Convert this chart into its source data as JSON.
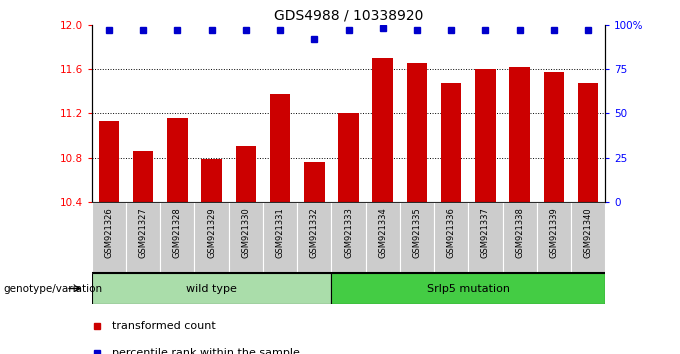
{
  "title": "GDS4988 / 10338920",
  "samples": [
    "GSM921326",
    "GSM921327",
    "GSM921328",
    "GSM921329",
    "GSM921330",
    "GSM921331",
    "GSM921332",
    "GSM921333",
    "GSM921334",
    "GSM921335",
    "GSM921336",
    "GSM921337",
    "GSM921338",
    "GSM921339",
    "GSM921340"
  ],
  "bar_values": [
    11.13,
    10.86,
    11.16,
    10.79,
    10.9,
    11.37,
    10.76,
    11.2,
    11.7,
    11.65,
    11.47,
    11.6,
    11.62,
    11.57,
    11.47
  ],
  "percentile_values": [
    97,
    97,
    97,
    97,
    97,
    97,
    92,
    97,
    98,
    97,
    97,
    97,
    97,
    97,
    97
  ],
  "bar_color": "#cc0000",
  "percentile_color": "#0000cc",
  "ylim_left": [
    10.4,
    12.0
  ],
  "ylim_right": [
    0,
    100
  ],
  "yticks_left": [
    10.4,
    10.8,
    11.2,
    11.6,
    12.0
  ],
  "yticks_right": [
    0,
    25,
    50,
    75,
    100
  ],
  "ytick_labels_right": [
    "0",
    "25",
    "50",
    "75",
    "100%"
  ],
  "grid_values": [
    10.8,
    11.2,
    11.6
  ],
  "wt_count": 7,
  "mut_count": 8,
  "wild_type_label": "wild type",
  "mutation_label": "Srlp5 mutation",
  "genotype_label": "genotype/variation",
  "legend_bar_label": "transformed count",
  "legend_dot_label": "percentile rank within the sample",
  "bar_width": 0.6,
  "wild_type_bg": "#aaddaa",
  "mutation_bg": "#44cc44",
  "xticklabel_bg": "#cccccc"
}
